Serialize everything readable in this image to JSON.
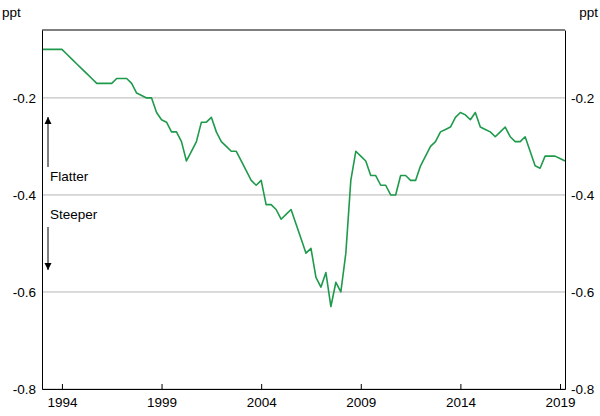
{
  "chart_data": {
    "type": "line",
    "ylabel": "ppt",
    "color": "#1f9a4c",
    "grid": true,
    "annotations": [
      "Flatter",
      "Steeper"
    ],
    "xlim": [
      1993,
      2019.25
    ],
    "xticks": [
      1994,
      1999,
      2004,
      2009,
      2014,
      2019
    ],
    "ylim": [
      -0.8,
      -0.06
    ],
    "yticks": [
      -0.2,
      -0.4,
      -0.6,
      -0.8
    ],
    "x": [
      1993,
      1993.25,
      1993.5,
      1993.75,
      1994,
      1994.25,
      1994.5,
      1994.75,
      1995,
      1995.25,
      1995.5,
      1995.75,
      1996,
      1996.25,
      1996.5,
      1996.75,
      1997,
      1997.25,
      1997.5,
      1997.75,
      1998,
      1998.25,
      1998.5,
      1998.75,
      1999,
      1999.25,
      1999.5,
      1999.75,
      2000,
      2000.25,
      2000.5,
      2000.75,
      2001,
      2001.25,
      2001.5,
      2001.75,
      2002,
      2002.25,
      2002.5,
      2002.75,
      2003,
      2003.25,
      2003.5,
      2003.75,
      2004,
      2004.25,
      2004.5,
      2004.75,
      2005,
      2005.25,
      2005.5,
      2005.75,
      2006,
      2006.25,
      2006.5,
      2006.75,
      2007,
      2007.25,
      2007.5,
      2007.75,
      2008,
      2008.25,
      2008.5,
      2008.75,
      2009,
      2009.25,
      2009.5,
      2009.75,
      2010,
      2010.25,
      2010.5,
      2010.75,
      2011,
      2011.25,
      2011.5,
      2011.75,
      2012,
      2012.25,
      2012.5,
      2012.75,
      2013,
      2013.25,
      2013.5,
      2013.75,
      2014,
      2014.25,
      2014.5,
      2014.75,
      2015,
      2015.25,
      2015.5,
      2015.75,
      2016,
      2016.25,
      2016.5,
      2016.75,
      2017,
      2017.25,
      2017.5,
      2017.75,
      2018,
      2018.25,
      2018.5,
      2018.75,
      2019,
      2019.25
    ],
    "values": [
      -0.1,
      -0.1,
      -0.1,
      -0.1,
      -0.1,
      -0.11,
      -0.12,
      -0.13,
      -0.14,
      -0.15,
      -0.16,
      -0.17,
      -0.17,
      -0.17,
      -0.17,
      -0.16,
      -0.16,
      -0.16,
      -0.17,
      -0.19,
      -0.195,
      -0.2,
      -0.2,
      -0.23,
      -0.245,
      -0.25,
      -0.27,
      -0.27,
      -0.29,
      -0.33,
      -0.31,
      -0.29,
      -0.25,
      -0.25,
      -0.24,
      -0.27,
      -0.29,
      -0.3,
      -0.31,
      -0.31,
      -0.33,
      -0.35,
      -0.37,
      -0.38,
      -0.37,
      -0.42,
      -0.42,
      -0.43,
      -0.45,
      -0.44,
      -0.43,
      -0.46,
      -0.49,
      -0.52,
      -0.51,
      -0.57,
      -0.59,
      -0.56,
      -0.63,
      -0.58,
      -0.6,
      -0.52,
      -0.37,
      -0.31,
      -0.32,
      -0.33,
      -0.36,
      -0.36,
      -0.38,
      -0.38,
      -0.4,
      -0.4,
      -0.36,
      -0.36,
      -0.37,
      -0.37,
      -0.34,
      -0.32,
      -0.3,
      -0.29,
      -0.27,
      -0.265,
      -0.26,
      -0.24,
      -0.23,
      -0.235,
      -0.245,
      -0.23,
      -0.26,
      -0.265,
      -0.27,
      -0.28,
      -0.27,
      -0.26,
      -0.28,
      -0.29,
      -0.29,
      -0.28,
      -0.31,
      -0.34,
      -0.345,
      -0.32,
      -0.32,
      -0.32,
      -0.325,
      -0.33
    ]
  }
}
